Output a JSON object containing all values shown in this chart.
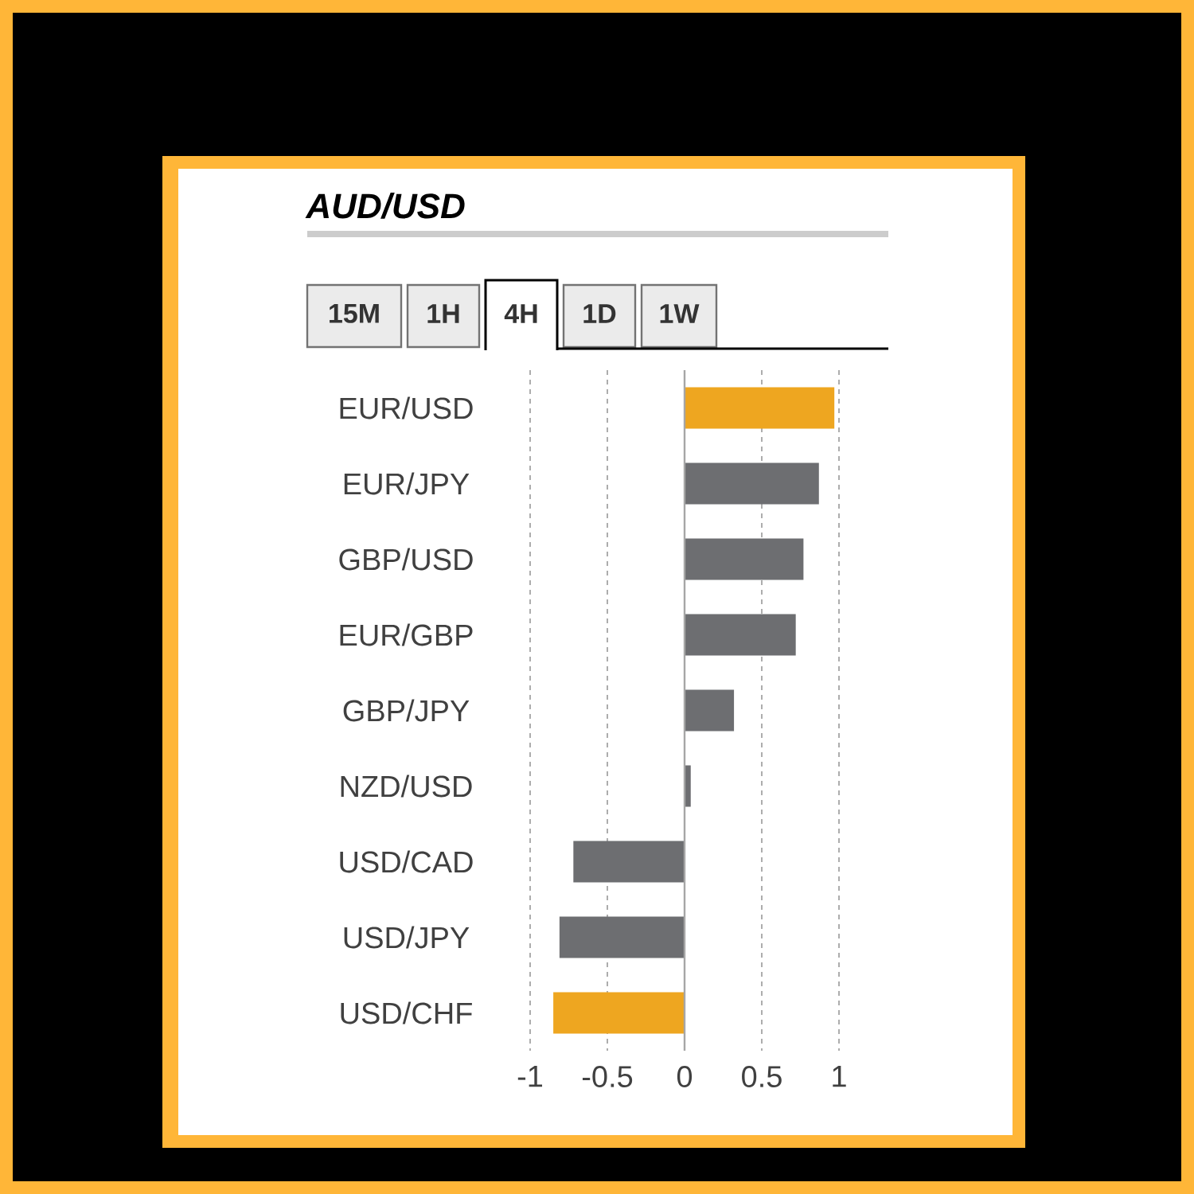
{
  "chart_data": {
    "type": "bar",
    "orientation": "horizontal",
    "title": "AUD/USD",
    "categories": [
      "EUR/USD",
      "EUR/JPY",
      "GBP/USD",
      "EUR/GBP",
      "GBP/JPY",
      "NZD/USD",
      "USD/CAD",
      "USD/JPY",
      "USD/CHF"
    ],
    "values": [
      0.97,
      0.87,
      0.77,
      0.72,
      0.32,
      0.04,
      -0.72,
      -0.81,
      -0.85
    ],
    "colors": [
      "#eea620",
      "#6d6e71",
      "#6d6e71",
      "#6d6e71",
      "#6d6e71",
      "#6d6e71",
      "#6d6e71",
      "#6d6e71",
      "#eea620"
    ],
    "xlim": [
      -1,
      1
    ],
    "xticks": [
      -1,
      -0.5,
      0,
      0.5,
      1
    ],
    "grid": "x",
    "annotations": [
      "15M",
      "1H",
      "4H",
      "1D",
      "1W"
    ]
  }
}
